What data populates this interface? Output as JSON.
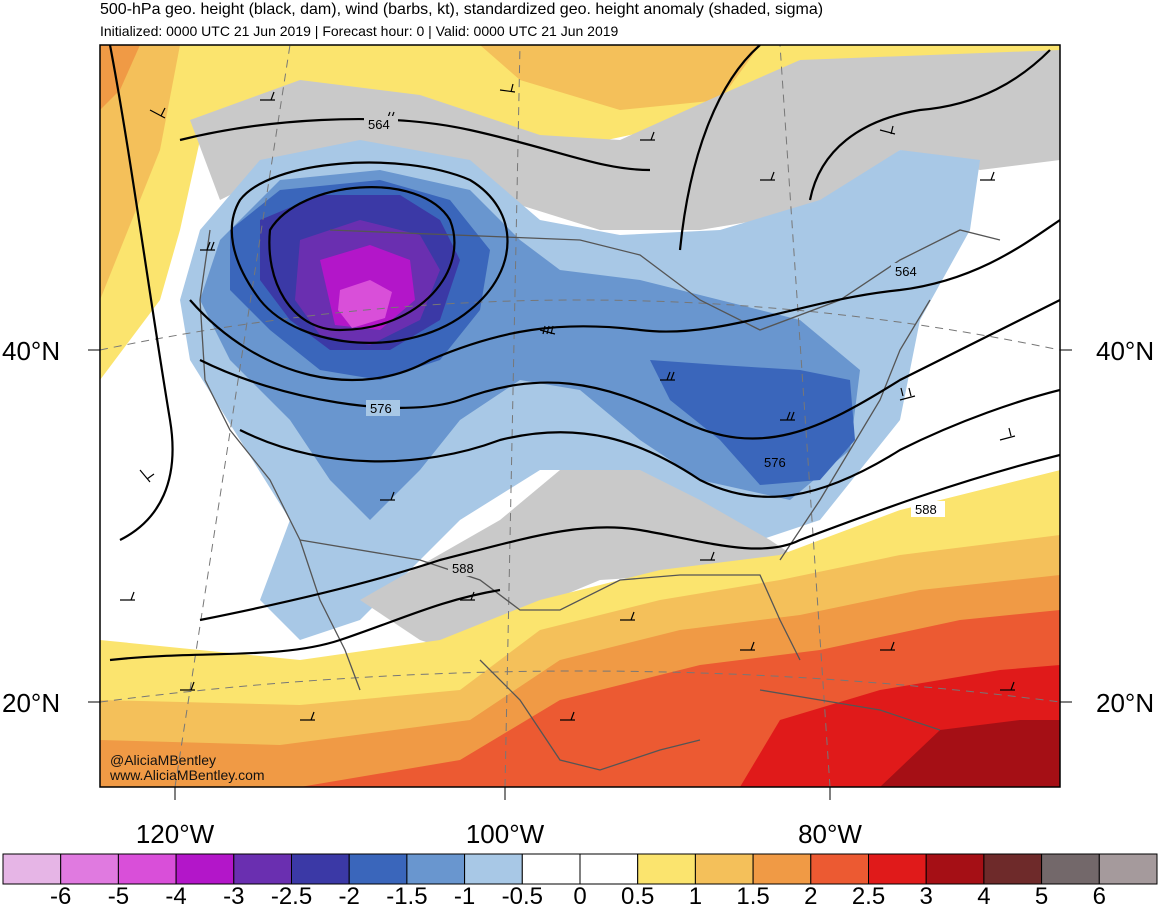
{
  "title": "500-hPa geo. height (black, dam), wind (barbs, kt), standardized geo. height anomaly (shaded, sigma)",
  "subtitle": "Initialized: 0000 UTC 21 Jun 2019 | Forecast hour: 0 | Valid: 0000 UTC 21 Jun 2019",
  "map": {
    "latitude_labels": [
      "40°N",
      "20°N"
    ],
    "longitude_labels": [
      "120°W",
      "100°W",
      "80°W"
    ],
    "contour_labels": [
      "564",
      "564",
      "576",
      "576",
      "588",
      "588"
    ],
    "credits": [
      "@AliciaMBentley",
      "www.AliciaMBentley.com"
    ]
  },
  "colorbar": {
    "labels": [
      "-6",
      "-5",
      "-4",
      "-3",
      "-2.5",
      "-2",
      "-1.5",
      "-1",
      "-0.5",
      "0",
      "0.5",
      "1",
      "1.5",
      "2",
      "2.5",
      "3",
      "4",
      "5",
      "6"
    ],
    "colors": [
      "#e6b5e6",
      "#e07ae0",
      "#d94fd9",
      "#b316c9",
      "#6a2fb0",
      "#3b39a6",
      "#3a66bb",
      "#6996cf",
      "#a8c8e6",
      "#ffffff",
      "#ffffff",
      "#fbe46e",
      "#f4c05a",
      "#f09a45",
      "#ec5a32",
      "#e01a1a",
      "#a50f15",
      "#6e2a2a",
      "#73686a",
      "#a59a9c"
    ]
  }
}
